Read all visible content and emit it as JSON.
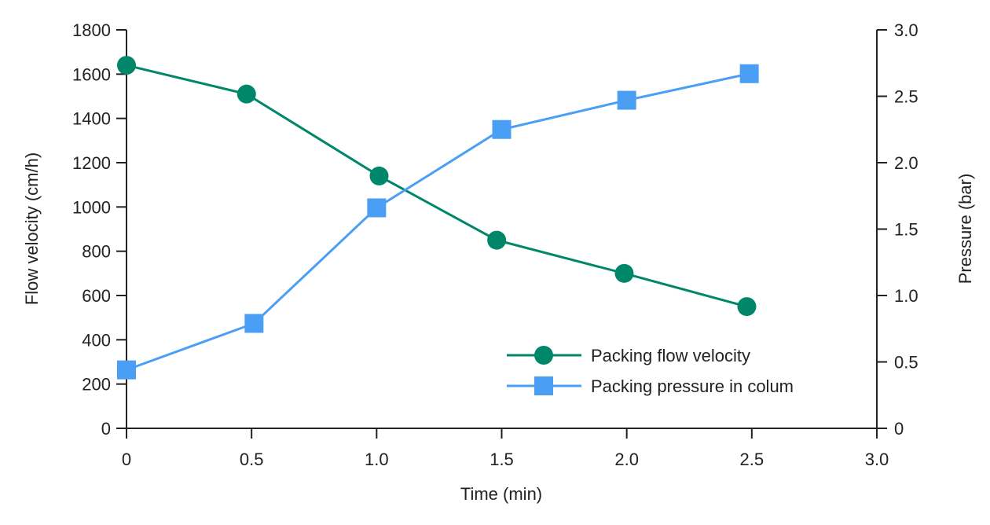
{
  "chart_data": {
    "type": "line",
    "title": "",
    "xlabel": "Time (min)",
    "ylabel": "Flow velocity (cm/h)",
    "y2label": "Pressure (bar)",
    "xlim": [
      0,
      3.0
    ],
    "ylim": [
      0,
      1800
    ],
    "y2lim": [
      0,
      3.0
    ],
    "xticks": [
      "0",
      "0.5",
      "1.0",
      "1.5",
      "2.0",
      "2.5",
      "3.0"
    ],
    "yticks": [
      "0",
      "200",
      "400",
      "600",
      "800",
      "1000",
      "1200",
      "1400",
      "1600",
      "1800"
    ],
    "y2ticks": [
      "0",
      "0.5",
      "1.0",
      "1.5",
      "2.0",
      "2.5",
      "3.0"
    ],
    "grid": false,
    "legend_position": "bottom-right",
    "series": [
      {
        "name": "Packing flow velocity",
        "axis": "left",
        "marker": "circle",
        "color": "#00876a",
        "x": [
          0,
          0.48,
          1.01,
          1.48,
          1.99,
          2.48
        ],
        "y": [
          1640,
          1510,
          1140,
          850,
          700,
          550
        ]
      },
      {
        "name": "Packing pressure in colum",
        "axis": "right",
        "marker": "square",
        "color": "#4a9ff5",
        "x": [
          0,
          0.51,
          1.0,
          1.5,
          2.0,
          2.49
        ],
        "y": [
          0.44,
          0.79,
          1.66,
          2.25,
          2.47,
          2.67
        ]
      }
    ]
  }
}
